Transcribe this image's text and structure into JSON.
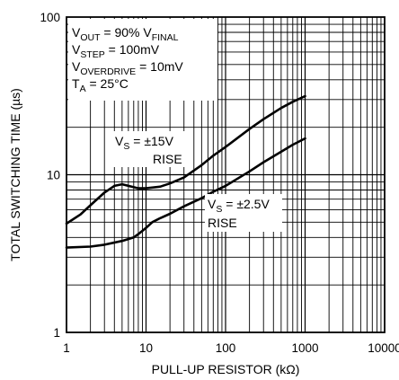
{
  "chart_data": {
    "type": "line",
    "title": "",
    "xlabel": "PULL-UP RESISTOR (kΩ)",
    "ylabel": "TOTAL SWITCHING TIME (µs)",
    "xscale": "log",
    "yscale": "log",
    "xlim": [
      1,
      10000
    ],
    "ylim": [
      1,
      100
    ],
    "grid": true,
    "x_tick_labels": [
      "1",
      "10",
      "100",
      "1000",
      "10000"
    ],
    "y_tick_labels": [
      "1",
      "10",
      "100"
    ],
    "conditions": [
      {
        "main": "V",
        "sub": "OUT",
        "rest": " = 90% V",
        "sub2": "FINAL"
      },
      {
        "main": "V",
        "sub": "STEP",
        "rest": " = 100mV",
        "sub2": ""
      },
      {
        "main": "V",
        "sub": "OVERDRIVE",
        "rest": " = 10mV",
        "sub2": ""
      },
      {
        "main": "T",
        "sub": "A",
        "rest": " = 25°C",
        "sub2": ""
      }
    ],
    "series": [
      {
        "label_main": "V",
        "label_sub": "S",
        "label_rest": " = ±15V",
        "label_line2": "RISE",
        "x": [
          1,
          1.5,
          2,
          3,
          4,
          5,
          6,
          8,
          10,
          15,
          20,
          30,
          50,
          70,
          100,
          200,
          300,
          500,
          700,
          1000
        ],
        "y": [
          4.9,
          5.6,
          6.4,
          7.7,
          8.5,
          8.7,
          8.5,
          8.2,
          8.2,
          8.4,
          8.8,
          9.6,
          11.5,
          13.2,
          15.0,
          19.5,
          22.5,
          26.5,
          29.0,
          31.5
        ]
      },
      {
        "label_main": "V",
        "label_sub": "S",
        "label_rest": " = ±2.5V",
        "label_line2": "RISE",
        "x": [
          1,
          2,
          3,
          5,
          7,
          8,
          10,
          12,
          15,
          20,
          30,
          50,
          70,
          100,
          200,
          300,
          500,
          700,
          1000
        ],
        "y": [
          3.45,
          3.5,
          3.6,
          3.8,
          4.0,
          4.2,
          4.6,
          5.0,
          5.3,
          5.65,
          6.3,
          7.1,
          7.8,
          8.5,
          10.5,
          12.0,
          14.0,
          15.5,
          17.0
        ]
      }
    ]
  }
}
